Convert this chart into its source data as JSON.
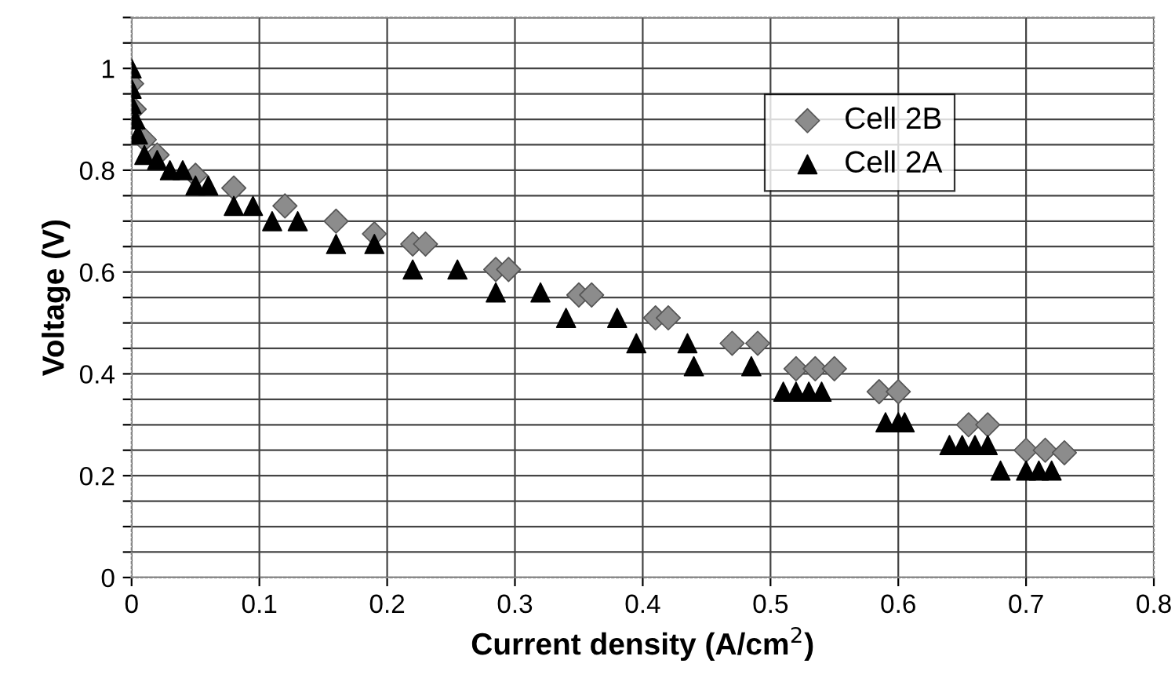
{
  "chart_data": {
    "type": "scatter",
    "xlabel": "Current density (A/cm$^{2}$)",
    "ylabel": "Voltage (V)",
    "xlim": [
      0,
      0.8
    ],
    "xticks": [
      0,
      0.1,
      0.2,
      0.3,
      0.4,
      0.5,
      0.6,
      0.7,
      0.8
    ],
    "ylim": [
      0,
      1.1
    ],
    "yticks": [
      0,
      {
        "value": 0.05,
        "label": null
      },
      {
        "value": 0.1,
        "label": null
      },
      {
        "value": 0.15,
        "label": null
      },
      0.2,
      {
        "value": 0.25,
        "label": null
      },
      {
        "value": 0.3,
        "label": null
      },
      {
        "value": 0.35,
        "label": null
      },
      0.4,
      {
        "value": 0.45,
        "label": null
      },
      {
        "value": 0.5,
        "label": null
      },
      {
        "value": 0.55,
        "label": null
      },
      0.6,
      {
        "value": 0.65,
        "label": null
      },
      {
        "value": 0.7,
        "label": null
      },
      {
        "value": 0.75,
        "label": null
      },
      0.8,
      {
        "value": 0.85,
        "label": null
      },
      {
        "value": 0.9,
        "label": null
      },
      {
        "value": 0.95,
        "label": null
      },
      1,
      {
        "value": 1.05,
        "label": null
      },
      {
        "value": 1.1,
        "label": null
      }
    ],
    "grid": true,
    "legend": "top right",
    "series": [
      {
        "name": "Cell 2B",
        "color": "#8c8c8c",
        "marker": "diamond",
        "x": [
          0,
          0.002,
          0.01,
          0.02,
          0.05,
          0.08,
          0.12,
          0.16,
          0.19,
          0.22,
          0.23,
          0.285,
          0.295,
          0.35,
          0.36,
          0.41,
          0.42,
          0.47,
          0.49,
          0.52,
          0.535,
          0.55,
          0.585,
          0.6,
          0.655,
          0.67,
          0.7,
          0.715,
          0.73
        ],
        "values": [
          0.97,
          0.92,
          0.86,
          0.83,
          0.79,
          0.765,
          0.73,
          0.7,
          0.675,
          0.655,
          0.655,
          0.605,
          0.605,
          0.555,
          0.555,
          0.51,
          0.51,
          0.46,
          0.46,
          0.41,
          0.41,
          0.41,
          0.365,
          0.365,
          0.3,
          0.3,
          0.25,
          0.25,
          0.245
        ]
      },
      {
        "name": "Cell 2A",
        "color": "#000000",
        "marker": "triangle",
        "x": [
          0,
          0,
          0,
          0.003,
          0.005,
          0.01,
          0.02,
          0.03,
          0.04,
          0.05,
          0.06,
          0.08,
          0.095,
          0.11,
          0.13,
          0.16,
          0.19,
          0.22,
          0.255,
          0.285,
          0.32,
          0.34,
          0.38,
          0.395,
          0.435,
          0.44,
          0.485,
          0.51,
          0.52,
          0.53,
          0.54,
          0.59,
          0.6,
          0.605,
          0.64,
          0.65,
          0.66,
          0.67,
          0.68,
          0.7,
          0.71,
          0.72
        ],
        "values": [
          1.0,
          0.96,
          0.93,
          0.9,
          0.87,
          0.83,
          0.82,
          0.8,
          0.8,
          0.77,
          0.77,
          0.73,
          0.73,
          0.7,
          0.7,
          0.655,
          0.655,
          0.605,
          0.605,
          0.56,
          0.56,
          0.51,
          0.51,
          0.46,
          0.46,
          0.415,
          0.415,
          0.365,
          0.365,
          0.365,
          0.365,
          0.305,
          0.305,
          0.305,
          0.26,
          0.26,
          0.26,
          0.26,
          0.21,
          0.21,
          0.21,
          0.21
        ]
      }
    ]
  }
}
